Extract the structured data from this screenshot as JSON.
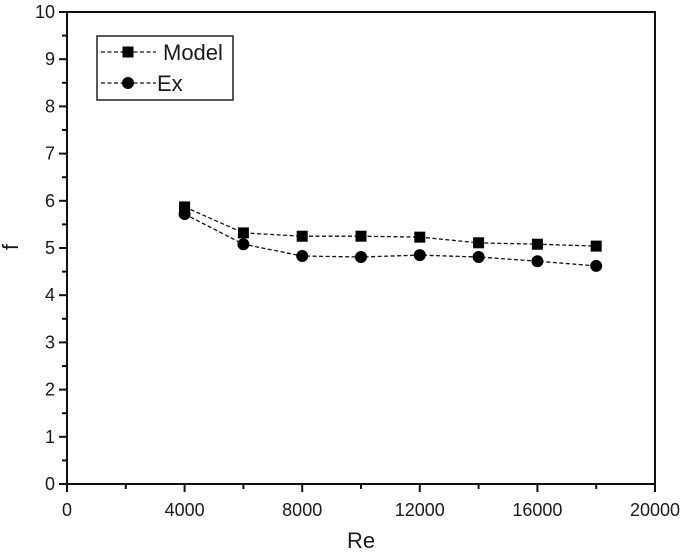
{
  "chart_data": {
    "type": "line",
    "title": "",
    "xlabel": "Re",
    "ylabel": "f",
    "xlim": [
      0,
      20000
    ],
    "ylim": [
      0,
      10
    ],
    "x_major_ticks": [
      0,
      4000,
      8000,
      12000,
      16000,
      20000
    ],
    "x_minor_ticks": [
      2000,
      6000,
      10000,
      14000,
      18000
    ],
    "y_major_ticks": [
      0,
      1,
      2,
      3,
      4,
      5,
      6,
      7,
      8,
      9,
      10
    ],
    "y_minor_step": 0.5,
    "grid": false,
    "legend_position": "upper left",
    "x": [
      4000,
      6000,
      8000,
      10000,
      12000,
      14000,
      16000,
      18000
    ],
    "series": [
      {
        "name": "Model",
        "marker": "square",
        "line_style": "dashed",
        "color": "#000000",
        "values": [
          5.87,
          5.32,
          5.25,
          5.25,
          5.23,
          5.11,
          5.08,
          5.04
        ]
      },
      {
        "name": "Ex",
        "marker": "circle",
        "line_style": "dashed",
        "color": "#000000",
        "values": [
          5.72,
          5.08,
          4.83,
          4.81,
          4.85,
          4.81,
          4.72,
          4.62
        ]
      }
    ]
  }
}
